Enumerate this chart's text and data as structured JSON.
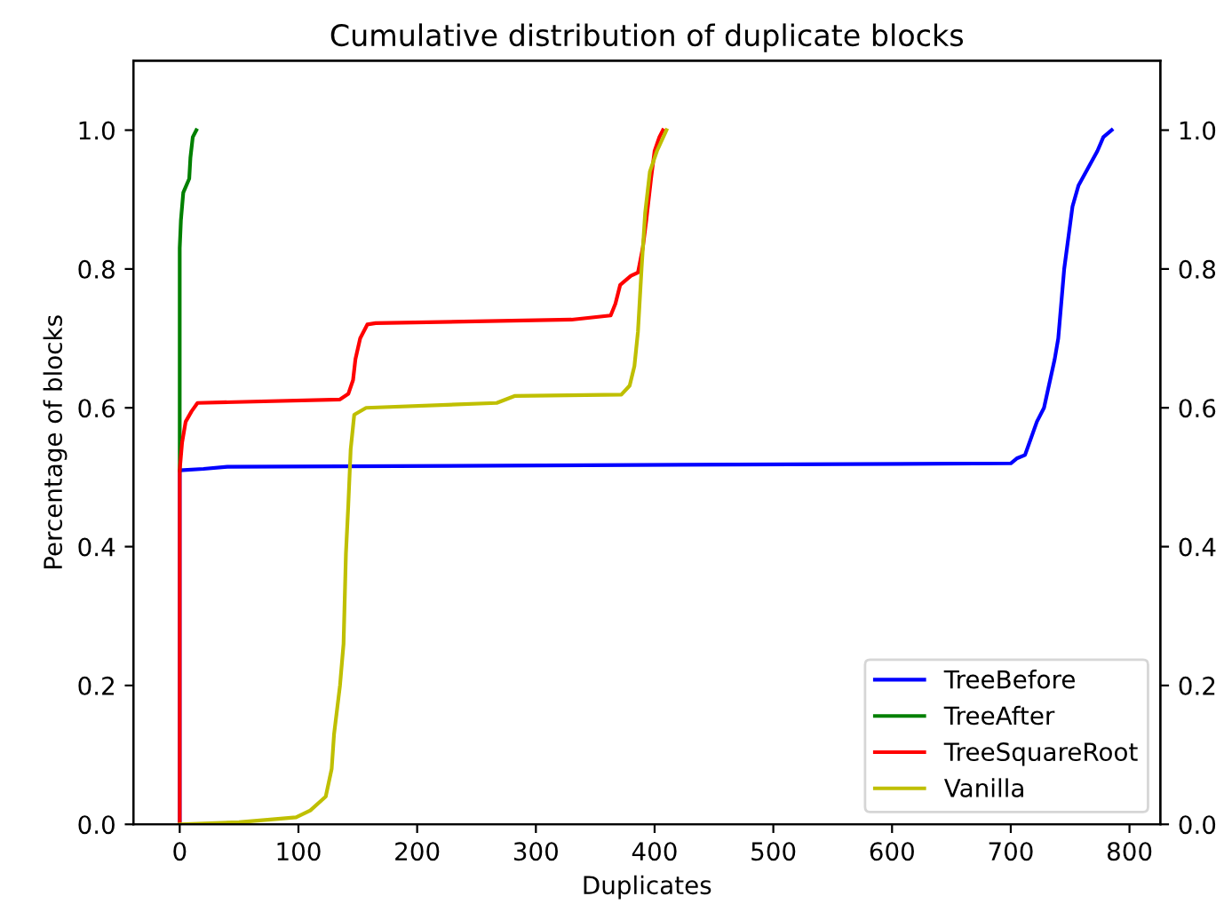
{
  "chart_data": {
    "type": "line",
    "title": "Cumulative distribution of duplicate blocks",
    "xlabel": "Duplicates",
    "ylabel": "Percentage of blocks",
    "xlim": [
      -39,
      826
    ],
    "xticks": [
      0,
      100,
      200,
      300,
      400,
      500,
      600,
      700,
      800
    ],
    "ylim": [
      0,
      1.1
    ],
    "yticks": [
      {
        "value": 0,
        "label": "0.0"
      },
      {
        "value": 0.2,
        "label": "0.2"
      },
      {
        "value": 0.4,
        "label": "0.4"
      },
      {
        "value": 0.6,
        "label": "0.6"
      },
      {
        "value": 0.8,
        "label": "0.8"
      },
      {
        "value": 1.0,
        "label": "1.0"
      }
    ],
    "y2lim": [
      0,
      1.1
    ],
    "y2ticks": [
      {
        "value": 0,
        "label": "0.0"
      },
      {
        "value": 0.2,
        "label": "0.2"
      },
      {
        "value": 0.4,
        "label": "0.4"
      },
      {
        "value": 0.6,
        "label": "0.6"
      },
      {
        "value": 0.8,
        "label": "0.8"
      },
      {
        "value": 1.0,
        "label": "1.0"
      }
    ],
    "grid": false,
    "legend": "bottom right",
    "line_style": "solid",
    "series": [
      {
        "name": "TreeBefore",
        "color": "#0000ff",
        "x": [
          0,
          0,
          20,
          40,
          700,
          705,
          712,
          722,
          728,
          737,
          740,
          745,
          752,
          757,
          765,
          773,
          778,
          785
        ],
        "values": [
          0,
          0.51,
          0.512,
          0.515,
          0.52,
          0.527,
          0.532,
          0.58,
          0.6,
          0.67,
          0.7,
          0.8,
          0.89,
          0.92,
          0.945,
          0.97,
          0.99,
          1.0
        ]
      },
      {
        "name": "TreeAfter",
        "color": "#008000",
        "x": [
          0,
          0,
          1,
          3,
          8,
          9,
          11,
          14
        ],
        "values": [
          0.51,
          0.83,
          0.87,
          0.91,
          0.93,
          0.96,
          0.99,
          1.0
        ]
      },
      {
        "name": "TreeSquareRoot",
        "color": "#ff0000",
        "x": [
          0,
          0,
          2,
          5,
          10,
          15,
          135,
          142,
          146,
          148,
          152,
          158,
          165,
          330,
          363,
          367,
          371,
          380,
          386,
          390,
          393,
          397,
          400,
          404,
          407
        ],
        "values": [
          0,
          0.51,
          0.55,
          0.58,
          0.595,
          0.607,
          0.612,
          0.62,
          0.64,
          0.67,
          0.7,
          0.72,
          0.722,
          0.727,
          0.733,
          0.75,
          0.777,
          0.79,
          0.795,
          0.83,
          0.87,
          0.93,
          0.97,
          0.99,
          1.0
        ]
      },
      {
        "name": "Vanilla",
        "color": "#bfbf00",
        "x": [
          0,
          50,
          98,
          110,
          123,
          128,
          130,
          135,
          138,
          140,
          142,
          144,
          147,
          157,
          267,
          282,
          372,
          379,
          383,
          386,
          389,
          392,
          396,
          402,
          410
        ],
        "values": [
          0,
          0.003,
          0.01,
          0.02,
          0.04,
          0.08,
          0.13,
          0.2,
          0.26,
          0.39,
          0.46,
          0.54,
          0.59,
          0.6,
          0.607,
          0.617,
          0.619,
          0.632,
          0.66,
          0.71,
          0.8,
          0.88,
          0.94,
          0.97,
          1.0
        ]
      }
    ]
  }
}
